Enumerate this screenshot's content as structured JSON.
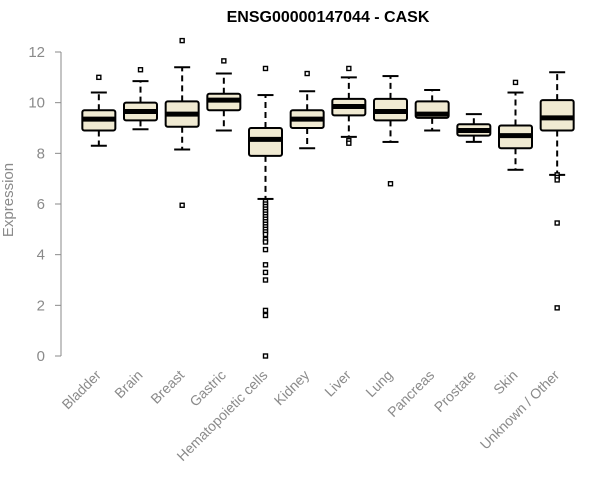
{
  "chart_data": {
    "type": "boxplot",
    "title": "ENSG00000147044 - CASK",
    "ylabel": "Expression",
    "xlabel": "",
    "ylim": [
      0,
      12.5
    ],
    "yticks": [
      0,
      2,
      4,
      6,
      8,
      10,
      12
    ],
    "grid": false,
    "legend": "none",
    "colors": {
      "box_fill": "#f0ead2",
      "box_stroke": "#000000",
      "median": "#000000",
      "axis": "#8a8a8a"
    },
    "categories": [
      "Bladder",
      "Brain",
      "Breast",
      "Gastric",
      "Hematopoietic cells",
      "Kidney",
      "Liver",
      "Lung",
      "Pancreas",
      "Prostate",
      "Skin",
      "Unknown / Other"
    ],
    "boxes": [
      {
        "category": "Bladder",
        "whisker_low": 8.3,
        "q1": 8.9,
        "median": 9.35,
        "q3": 9.7,
        "whisker_high": 10.4,
        "outliers": [
          11.0
        ]
      },
      {
        "category": "Brain",
        "whisker_low": 8.95,
        "q1": 9.3,
        "median": 9.65,
        "q3": 10.0,
        "whisker_high": 10.85,
        "outliers": [
          11.3
        ]
      },
      {
        "category": "Breast",
        "whisker_low": 8.15,
        "q1": 9.05,
        "median": 9.55,
        "q3": 10.05,
        "whisker_high": 11.4,
        "outliers": [
          12.45,
          5.95
        ]
      },
      {
        "category": "Gastric",
        "whisker_low": 8.9,
        "q1": 9.7,
        "median": 10.1,
        "q3": 10.35,
        "whisker_high": 11.15,
        "outliers": [
          11.65
        ]
      },
      {
        "category": "Hematopoietic cells",
        "whisker_low": 6.2,
        "q1": 7.9,
        "median": 8.55,
        "q3": 9.0,
        "whisker_high": 10.3,
        "outliers": [
          11.35,
          6.1,
          6.0,
          5.9,
          5.8,
          5.7,
          5.6,
          5.5,
          5.4,
          5.3,
          5.2,
          5.1,
          5.0,
          4.9,
          4.8,
          4.6,
          4.5,
          4.2,
          3.6,
          3.3,
          3.0,
          1.8,
          1.6,
          0.0
        ]
      },
      {
        "category": "Kidney",
        "whisker_low": 8.2,
        "q1": 9.0,
        "median": 9.35,
        "q3": 9.7,
        "whisker_high": 10.45,
        "outliers": [
          11.15
        ]
      },
      {
        "category": "Liver",
        "whisker_low": 8.65,
        "q1": 9.5,
        "median": 9.85,
        "q3": 10.15,
        "whisker_high": 11.0,
        "outliers": [
          11.35,
          8.5,
          8.4
        ]
      },
      {
        "category": "Lung",
        "whisker_low": 8.45,
        "q1": 9.3,
        "median": 9.65,
        "q3": 10.15,
        "whisker_high": 11.05,
        "outliers": [
          6.8
        ]
      },
      {
        "category": "Pancreas",
        "whisker_low": 8.9,
        "q1": 9.4,
        "median": 9.55,
        "q3": 10.05,
        "whisker_high": 10.5,
        "outliers": []
      },
      {
        "category": "Prostate",
        "whisker_low": 8.45,
        "q1": 8.7,
        "median": 8.9,
        "q3": 9.15,
        "whisker_high": 9.55,
        "outliers": []
      },
      {
        "category": "Skin",
        "whisker_low": 7.35,
        "q1": 8.2,
        "median": 8.7,
        "q3": 9.1,
        "whisker_high": 10.4,
        "outliers": [
          10.8
        ]
      },
      {
        "category": "Unknown / Other",
        "whisker_low": 7.15,
        "q1": 8.9,
        "median": 9.4,
        "q3": 10.1,
        "whisker_high": 11.2,
        "outliers": [
          7.15,
          7.05,
          6.95,
          5.25,
          1.9
        ]
      }
    ]
  }
}
